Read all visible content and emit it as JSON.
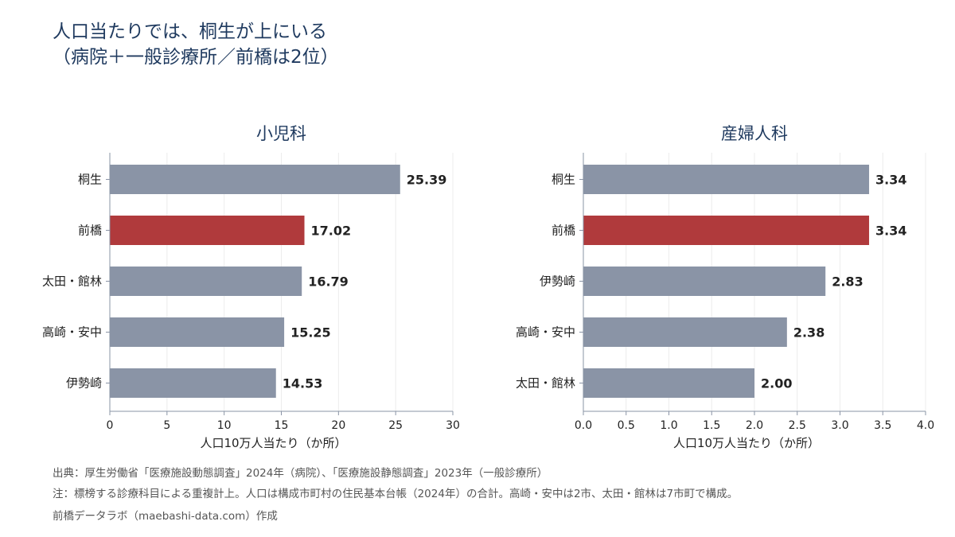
{
  "title": {
    "line1": "人口当たりでは、桐生が上にいる",
    "line2": "（病院＋一般診療所／前橋は2位）"
  },
  "colors": {
    "highlight": "#b03a3c",
    "default": "#8a94a6",
    "title": "#1f3a5f",
    "axis": "#8a94a6",
    "grid": "#ececec"
  },
  "chart_data": [
    {
      "type": "bar",
      "orientation": "horizontal",
      "title": "小児科",
      "categories": [
        "桐生",
        "前橋",
        "太田・館林",
        "高崎・安中",
        "伊勢崎"
      ],
      "values": [
        25.39,
        17.02,
        16.79,
        15.25,
        14.53
      ],
      "value_labels": [
        "25.39",
        "17.02",
        "16.79",
        "15.25",
        "14.53"
      ],
      "highlight": "前橋",
      "xlabel": "人口10万人当たり（か所）",
      "xlim": [
        0,
        30
      ],
      "xticks": [
        "0",
        "5",
        "10",
        "15",
        "20",
        "25",
        "30"
      ],
      "grid": "vertical"
    },
    {
      "type": "bar",
      "orientation": "horizontal",
      "title": "産婦人科",
      "categories": [
        "桐生",
        "前橋",
        "伊勢崎",
        "高崎・安中",
        "太田・館林"
      ],
      "values": [
        3.34,
        3.34,
        2.83,
        2.38,
        2.0
      ],
      "value_labels": [
        "3.34",
        "3.34",
        "2.83",
        "2.38",
        "2.00"
      ],
      "highlight": "前橋",
      "xlabel": "人口10万人当たり（か所）",
      "xlim": [
        0,
        4
      ],
      "xticks": [
        "0.0",
        "0.5",
        "1.0",
        "1.5",
        "2.0",
        "2.5",
        "3.0",
        "3.5",
        "4.0"
      ],
      "grid": "vertical"
    }
  ],
  "footer": {
    "source": "出典：厚生労働省「医療施設動態調査」2024年（病院）、「医療施設静態調査」2023年（一般診療所）",
    "note": "注：標榜する診療科目による重複計上。人口は構成市町村の住民基本台帳（2024年）の合計。高崎・安中は2市、太田・館林は7市町で構成。",
    "credit": "前橋データラボ（maebashi-data.com）作成"
  }
}
